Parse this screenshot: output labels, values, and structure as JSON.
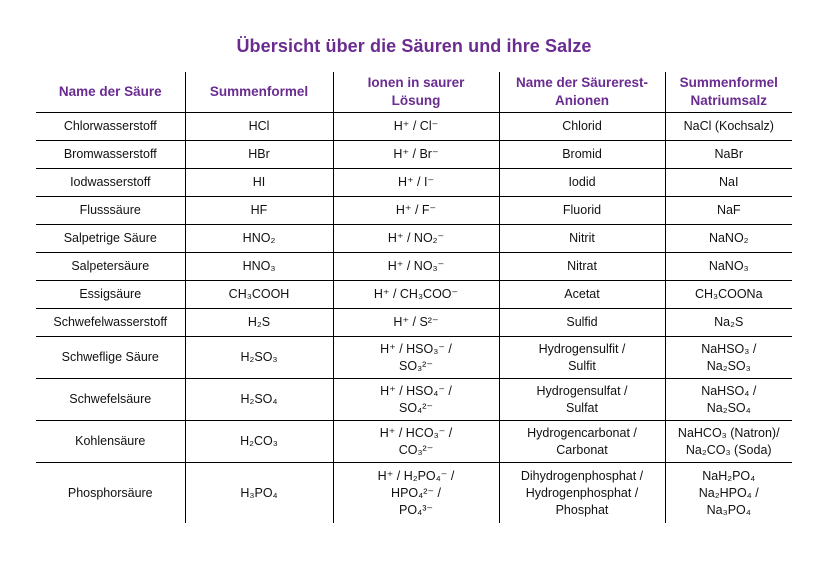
{
  "title": "Übersicht über die Säuren und ihre Salze",
  "headers": {
    "name": "Name der Säure",
    "formula": "Summenformel",
    "ions_1": "Ionen in saurer",
    "ions_2": "Lösung",
    "anion_1": "Name der Säurerest-",
    "anion_2": "Anionen",
    "salt_1": "Summenformel",
    "salt_2": "Natriumsalz"
  },
  "rows": [
    {
      "name": "Chlorwasserstoff",
      "formula": "HCl",
      "ions": "H⁺ / Cl⁻",
      "anion": "Chlorid",
      "salt": "NaCl (Kochsalz)"
    },
    {
      "name": "Bromwasserstoff",
      "formula": "HBr",
      "ions": "H⁺ / Br⁻",
      "anion": "Bromid",
      "salt": "NaBr"
    },
    {
      "name": "Iodwasserstoff",
      "formula": "HI",
      "ions": "H⁺ / I⁻",
      "anion": "Iodid",
      "salt": "NaI"
    },
    {
      "name": "Flusssäure",
      "formula": "HF",
      "ions": "H⁺ / F⁻",
      "anion": "Fluorid",
      "salt": "NaF"
    },
    {
      "name": "Salpetrige Säure",
      "formula": "HNO₂",
      "ions": "H⁺ / NO₂⁻",
      "anion": "Nitrit",
      "salt": "NaNO₂"
    },
    {
      "name": "Salpetersäure",
      "formula": "HNO₃",
      "ions": "H⁺ / NO₃⁻",
      "anion": "Nitrat",
      "salt": "NaNO₃"
    },
    {
      "name": "Essigsäure",
      "formula": "CH₃COOH",
      "ions": "H⁺ / CH₃COO⁻",
      "anion": "Acetat",
      "salt": "CH₃COONa"
    },
    {
      "name": "Schwefelwasserstoff",
      "formula": "H₂S",
      "ions": "H⁺ / S²⁻",
      "anion": "Sulfid",
      "salt": "Na₂S"
    },
    {
      "name": "Schweflige Säure",
      "formula": "H₂SO₃",
      "ions_1": "H⁺ / HSO₃⁻ /",
      "ions_2": "SO₃²⁻",
      "anion_1": "Hydrogensulfit /",
      "anion_2": "Sulfit",
      "salt_1": "NaHSO₃ /",
      "salt_2": "Na₂SO₃"
    },
    {
      "name": "Schwefelsäure",
      "formula": "H₂SO₄",
      "ions_1": "H⁺ / HSO₄⁻ /",
      "ions_2": "SO₄²⁻",
      "anion_1": "Hydrogensulfat /",
      "anion_2": "Sulfat",
      "salt_1": "NaHSO₄ /",
      "salt_2": "Na₂SO₄"
    },
    {
      "name": "Kohlensäure",
      "formula": "H₂CO₃",
      "ions_1": "H⁺ / HCO₃⁻ /",
      "ions_2": "CO₃²⁻",
      "anion_1": "Hydrogencarbonat /",
      "anion_2": "Carbonat",
      "salt_1": "NaHCO₃ (Natron)/",
      "salt_2": "Na₂CO₃ (Soda)"
    },
    {
      "name": "Phosphorsäure",
      "formula": "H₃PO₄",
      "ions_1": "H⁺ / H₂PO₄⁻ /",
      "ions_2": "HPO₄²⁻ /",
      "ions_3": "PO₄³⁻",
      "anion_1": "Dihydrogenphosphat /",
      "anion_2": "Hydrogenphosphat /",
      "anion_3": "Phosphat",
      "salt_1": "NaH₂PO₄",
      "salt_2": "Na₂HPO₄ /",
      "salt_3": "Na₃PO₄"
    }
  ]
}
